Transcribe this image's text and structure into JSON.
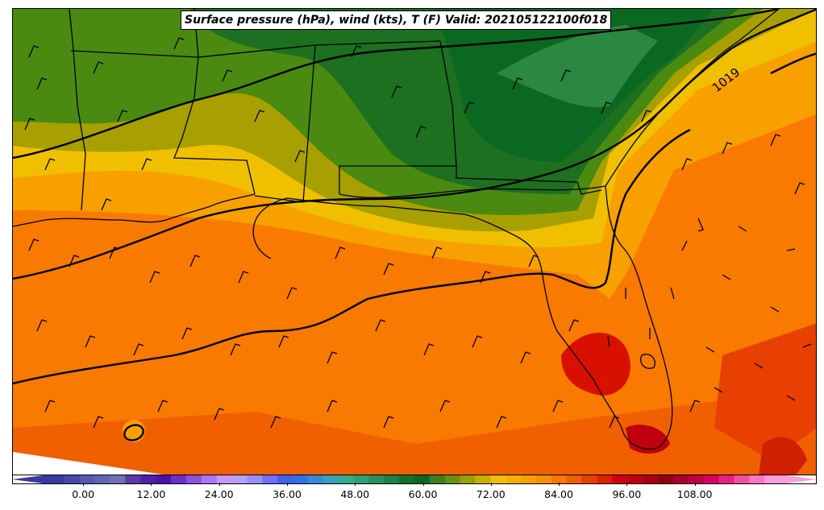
{
  "title": "Surface pressure (hPa), wind (kts), T (F) Valid: 202105122100f018",
  "isobar_label": "1019",
  "colorbar": {
    "tick_labels": [
      "0.00",
      "12.00",
      "24.00",
      "36.00",
      "48.00",
      "60.00",
      "72.00",
      "84.00",
      "96.00",
      "108.00"
    ],
    "tick_values": [
      0,
      12,
      24,
      36,
      48,
      60,
      72,
      84,
      96,
      108
    ],
    "min": -6,
    "max": 123,
    "colors": [
      "#3a3aa0",
      "#4848a8",
      "#5858b0",
      "#6464b4",
      "#7070b8",
      "#5a3aa8",
      "#5020a8",
      "#4810b0",
      "#6a30c8",
      "#8a50e0",
      "#a878f0",
      "#c898f8",
      "#b8a0f8",
      "#9890f8",
      "#7070f8",
      "#4060f0",
      "#3070e8",
      "#3a88d8",
      "#3aa0b8",
      "#38a888",
      "#30a070",
      "#289060",
      "#1c8048",
      "#107030",
      "#0a6820",
      "#3a8020",
      "#6a9010",
      "#9aa000",
      "#c8b000",
      "#f0c000",
      "#f8b000",
      "#f8a000",
      "#f89000",
      "#f87800",
      "#f06000",
      "#e84000",
      "#e02000",
      "#d00010",
      "#c00010",
      "#a80010",
      "#900010",
      "#a80030",
      "#c00040",
      "#d80060",
      "#e82080",
      "#f050a0",
      "#f878c0",
      "#f8a0d8"
    ]
  },
  "legend_fills": {
    "gulf_orange": "#f87a00",
    "gulf_dark_orange": "#f06000",
    "warm_mid": "#f8a000",
    "yellow": "#f0c000",
    "olive": "#a8a000",
    "green_light": "#4a8a10",
    "green_mid": "#1c7020",
    "green_dark": "#0a6820",
    "red": "#d81000",
    "red_dark": "#b00010",
    "pink": "#ff60a0"
  }
}
